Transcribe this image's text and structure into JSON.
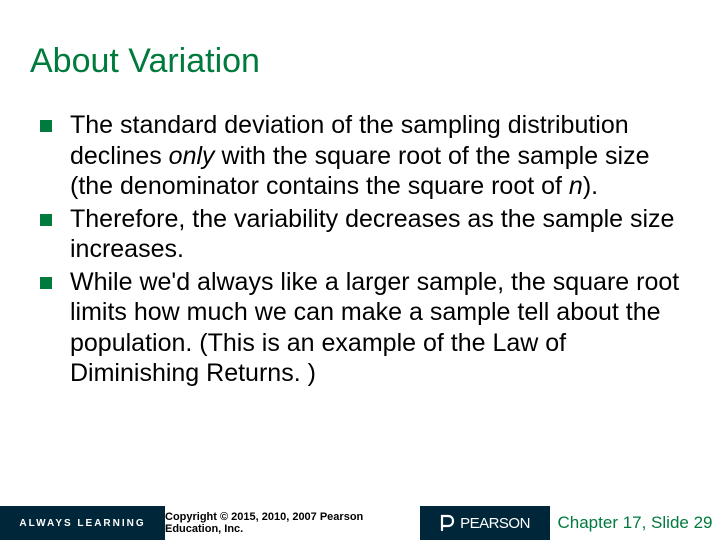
{
  "colors": {
    "title": "#007a3d",
    "bullet": "#007a3d",
    "footer_bg": "#00263a",
    "footer_right_text": "#007a3d",
    "body_text": "#000000"
  },
  "typography": {
    "title_fontsize": 34,
    "body_fontsize": 25,
    "footer_left_fontsize": 10,
    "footer_mid_fontsize": 11,
    "footer_brand_fontsize": 15,
    "footer_right_fontsize": 17
  },
  "title": "About Variation",
  "bullets": [
    {
      "html": "The standard deviation of the sampling distribution declines <span class=\"italic\">only</span> with the square root of the sample size (the denominator contains the square root of <span class=\"italic\">n</span>)."
    },
    {
      "html": "Therefore, the variability decreases as the sample size increases."
    },
    {
      "html": "While we'd always like a larger sample, the square root limits how much we can make a sample tell about the population. (This is an example of the Law of Diminishing Returns. )"
    }
  ],
  "footer": {
    "left": "ALWAYS LEARNING",
    "mid": "Copyright © 2015, 2010, 2007 Pearson Education, Inc.",
    "brand": "PEARSON",
    "right": "Chapter 17, Slide 29"
  }
}
